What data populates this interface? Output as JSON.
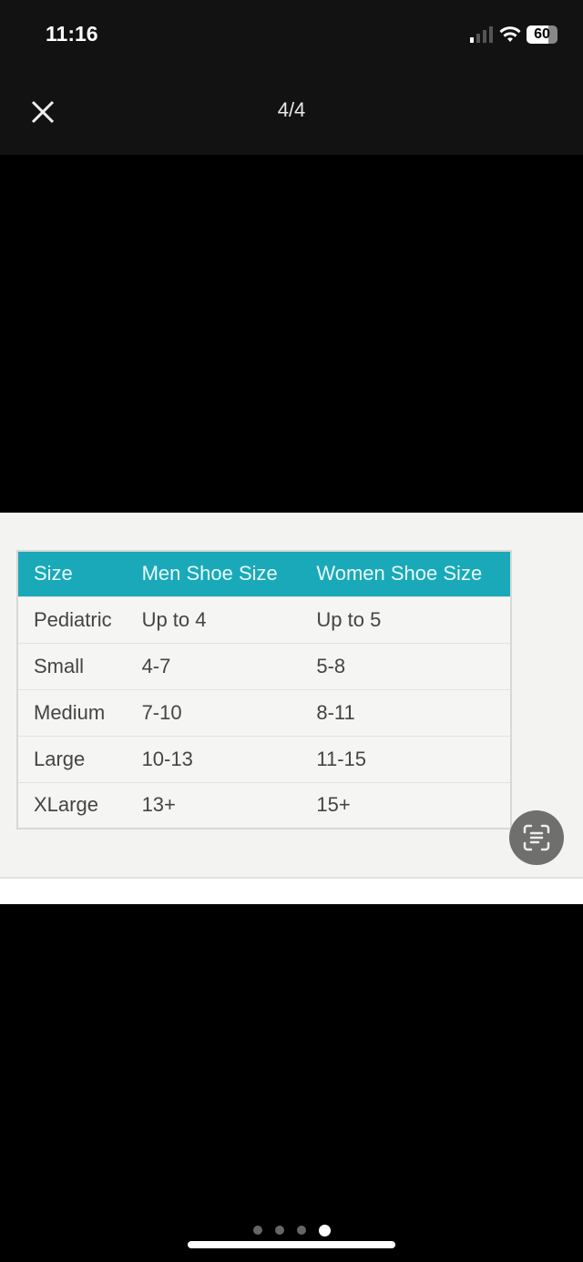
{
  "status_bar": {
    "time": "11:16",
    "battery": "60",
    "icons": [
      "cellular-signal-icon",
      "wifi-icon",
      "battery-icon"
    ]
  },
  "viewer": {
    "counter": "4/4",
    "close_icon": "close-icon",
    "page_index": 4,
    "page_count": 4
  },
  "table": {
    "headers": [
      "Size",
      "Men Shoe Size",
      "Women Shoe Size"
    ],
    "rows": [
      [
        "Pediatric",
        "Up to 4",
        "Up to 5"
      ],
      [
        "Small",
        "4-7",
        "5-8"
      ],
      [
        "Medium",
        "7-10",
        "8-11"
      ],
      [
        "Large",
        "10-13",
        "11-15"
      ],
      [
        "XLarge",
        "13+",
        "15+"
      ]
    ],
    "header_color": "#1aa9b8"
  },
  "live_text_button": {
    "icon": "live-text-icon"
  }
}
